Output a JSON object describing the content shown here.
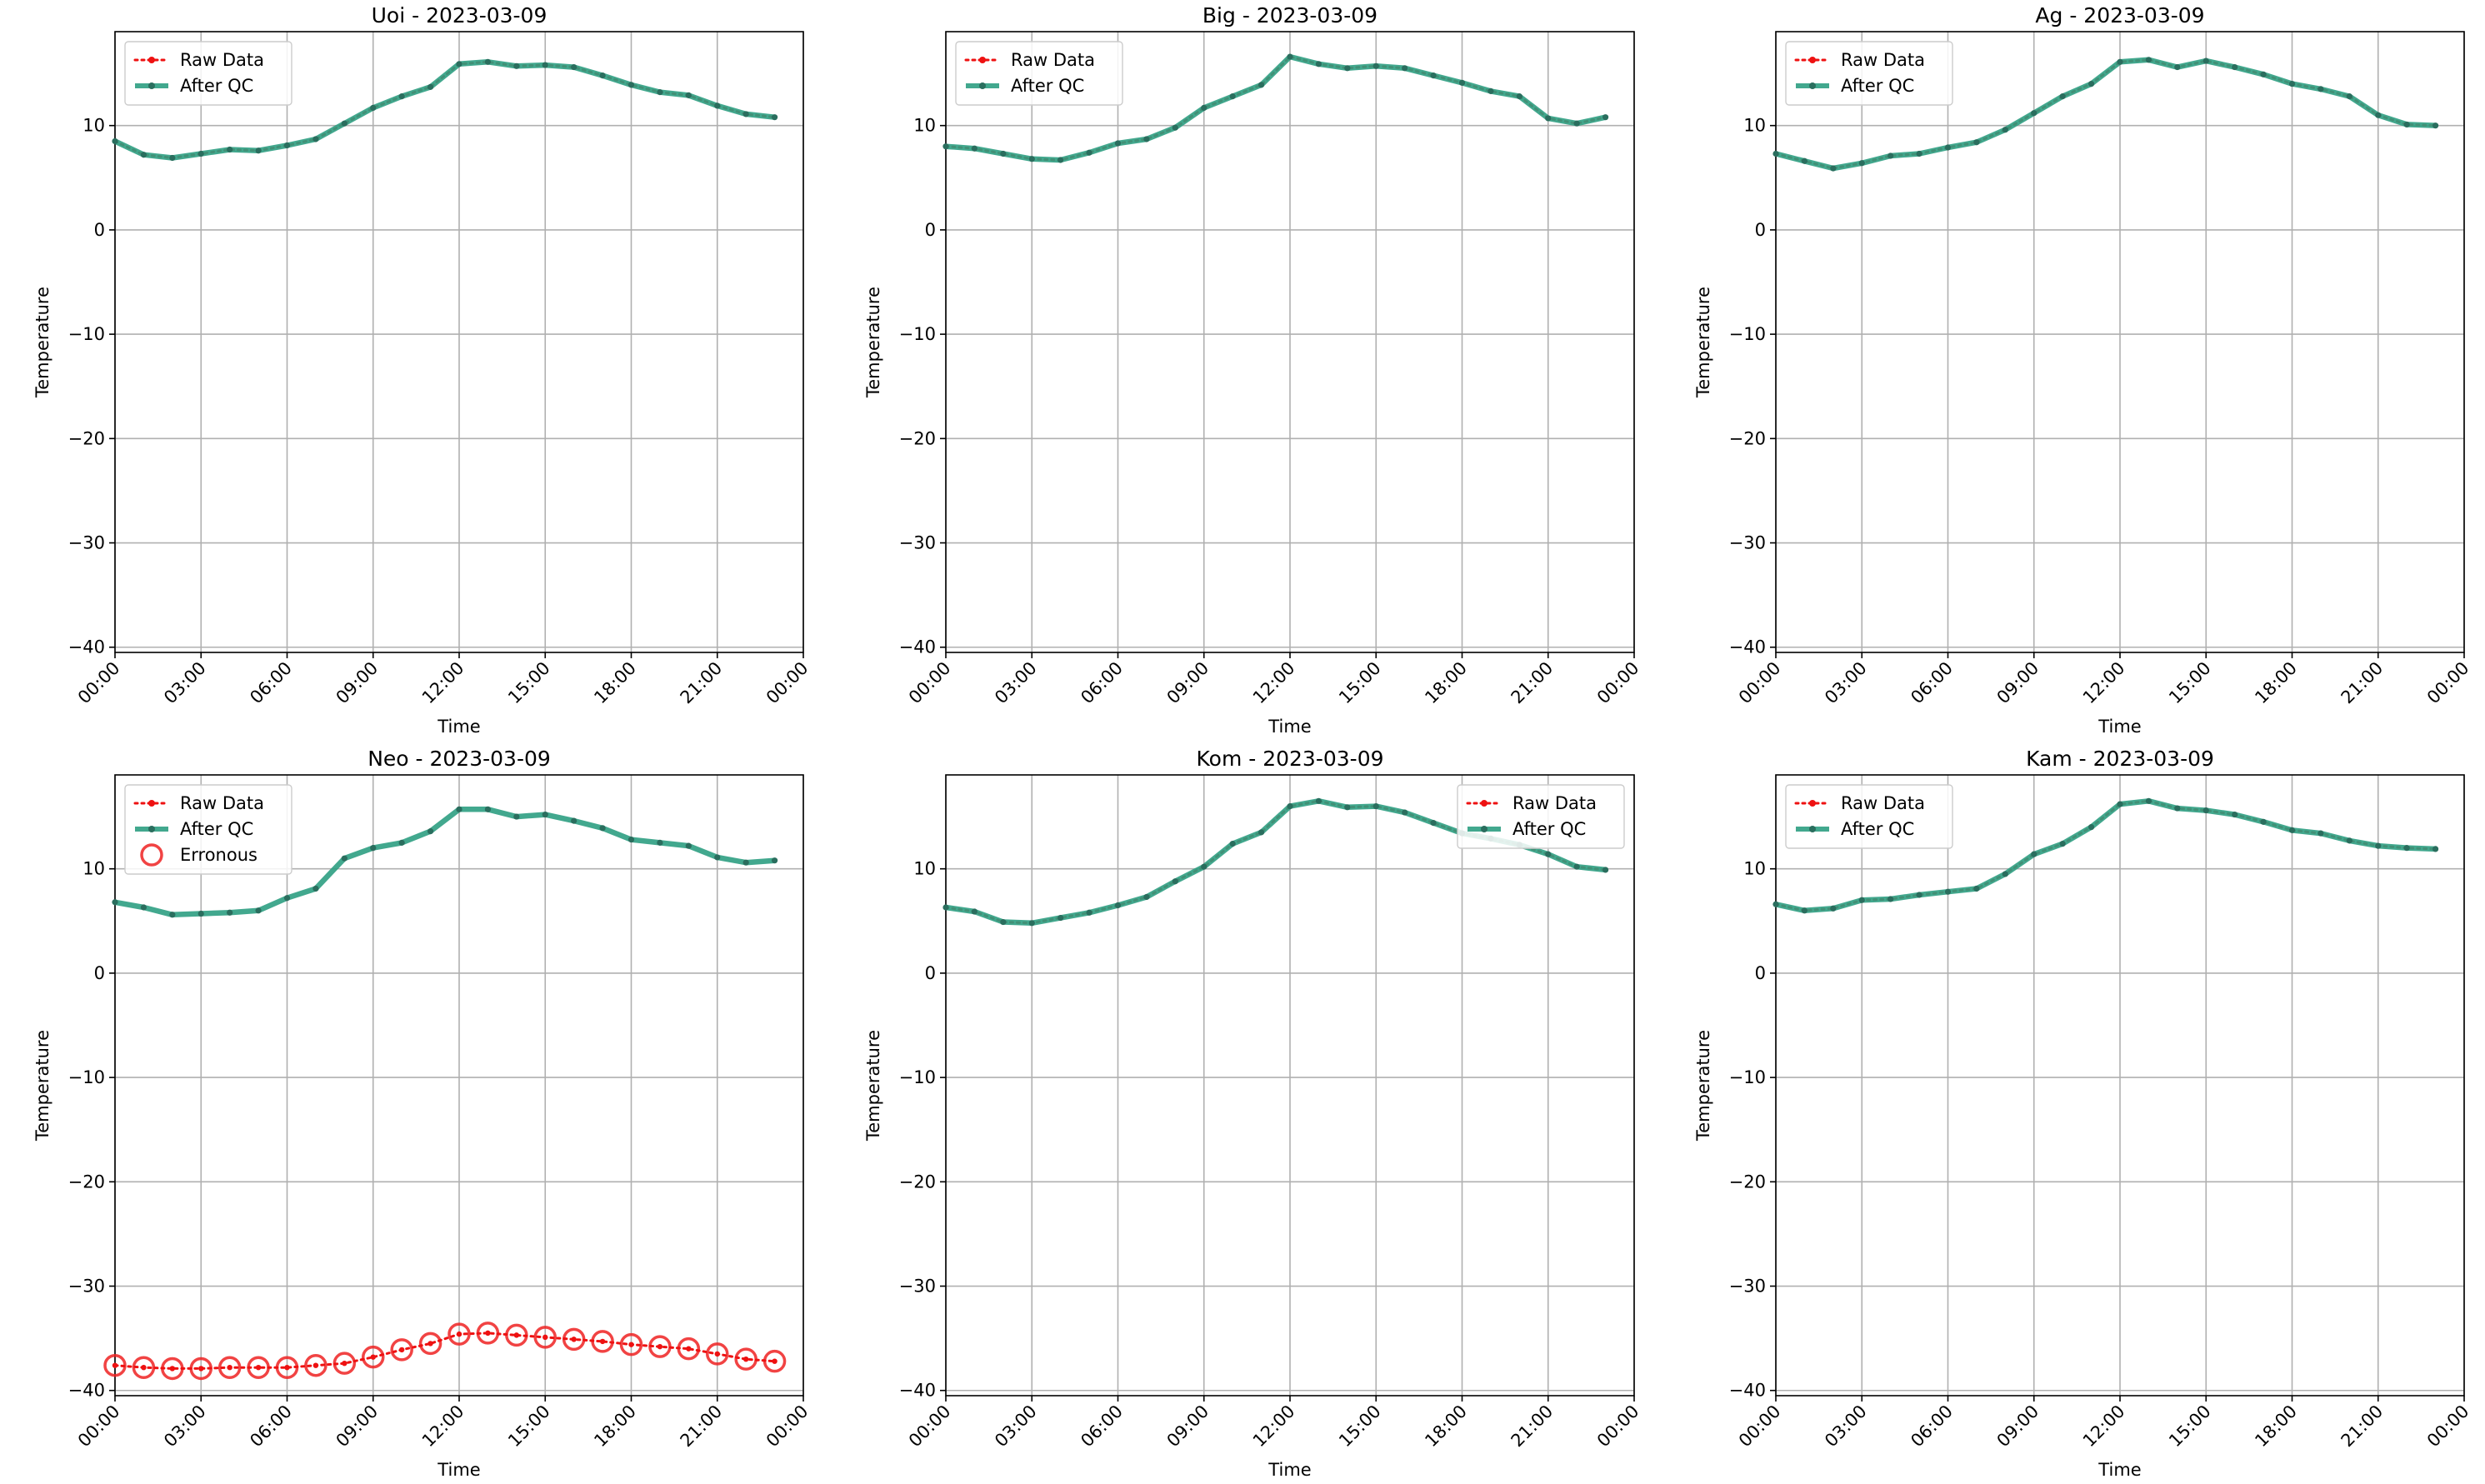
{
  "chart_data": [
    {
      "type": "line",
      "title": "Uoi - 2023-03-09",
      "xlabel": "Time",
      "ylabel": "Temperature",
      "xticks": [
        "00:00",
        "03:00",
        "06:00",
        "09:00",
        "12:00",
        "15:00",
        "18:00",
        "21:00",
        "00:00"
      ],
      "yticks": [
        "10",
        "0",
        "−10",
        "−20",
        "−30",
        "−40"
      ],
      "xlim": [
        0,
        24
      ],
      "ylim": [
        -40.5,
        19
      ],
      "grid": true,
      "legend_position": "upper-left",
      "legend": [
        "Raw Data",
        "After QC"
      ],
      "x_hours": [
        0,
        1,
        2,
        3,
        4,
        5,
        6,
        7,
        8,
        9,
        10,
        11,
        12,
        13,
        14,
        15,
        16,
        17,
        18,
        19,
        20,
        21,
        22,
        23
      ],
      "series": [
        {
          "name": "Raw Data",
          "values": [
            8.5,
            7.2,
            6.9,
            7.3,
            7.7,
            7.6,
            8.1,
            8.7,
            10.2,
            11.7,
            12.8,
            13.7,
            15.9,
            16.1,
            15.7,
            15.8,
            15.6,
            14.8,
            13.9,
            13.2,
            12.9,
            11.9,
            11.1,
            10.8
          ]
        },
        {
          "name": "After QC",
          "values": [
            8.5,
            7.2,
            6.9,
            7.3,
            7.7,
            7.6,
            8.1,
            8.7,
            10.2,
            11.7,
            12.8,
            13.7,
            15.9,
            16.1,
            15.7,
            15.8,
            15.6,
            14.8,
            13.9,
            13.2,
            12.9,
            11.9,
            11.1,
            10.8
          ]
        }
      ]
    },
    {
      "type": "line",
      "title": "Big - 2023-03-09",
      "xlabel": "Time",
      "ylabel": "Temperature",
      "xticks": [
        "00:00",
        "03:00",
        "06:00",
        "09:00",
        "12:00",
        "15:00",
        "18:00",
        "21:00",
        "00:00"
      ],
      "yticks": [
        "10",
        "0",
        "−10",
        "−20",
        "−30",
        "−40"
      ],
      "xlim": [
        0,
        24
      ],
      "ylim": [
        -40.5,
        19
      ],
      "grid": true,
      "legend_position": "upper-left",
      "legend": [
        "Raw Data",
        "After QC"
      ],
      "x_hours": [
        0,
        1,
        2,
        3,
        4,
        5,
        6,
        7,
        8,
        9,
        10,
        11,
        12,
        13,
        14,
        15,
        16,
        17,
        18,
        19,
        20,
        21,
        22,
        23
      ],
      "series": [
        {
          "name": "Raw Data",
          "values": [
            8.0,
            7.8,
            7.3,
            6.8,
            6.7,
            7.4,
            8.3,
            8.7,
            9.8,
            11.7,
            12.8,
            13.9,
            16.6,
            15.9,
            15.5,
            15.7,
            15.5,
            14.8,
            14.1,
            13.3,
            12.8,
            10.7,
            10.2,
            10.8
          ]
        },
        {
          "name": "After QC",
          "values": [
            8.0,
            7.8,
            7.3,
            6.8,
            6.7,
            7.4,
            8.3,
            8.7,
            9.8,
            11.7,
            12.8,
            13.9,
            16.6,
            15.9,
            15.5,
            15.7,
            15.5,
            14.8,
            14.1,
            13.3,
            12.8,
            10.7,
            10.2,
            10.8
          ]
        }
      ]
    },
    {
      "type": "line",
      "title": "Ag - 2023-03-09",
      "xlabel": "Time",
      "ylabel": "Temperature",
      "xticks": [
        "00:00",
        "03:00",
        "06:00",
        "09:00",
        "12:00",
        "15:00",
        "18:00",
        "21:00",
        "00:00"
      ],
      "yticks": [
        "10",
        "0",
        "−10",
        "−20",
        "−30",
        "−40"
      ],
      "xlim": [
        0,
        24
      ],
      "ylim": [
        -40.5,
        19
      ],
      "grid": true,
      "legend_position": "upper-left",
      "legend": [
        "Raw Data",
        "After QC"
      ],
      "x_hours": [
        0,
        1,
        2,
        3,
        4,
        5,
        6,
        7,
        8,
        9,
        10,
        11,
        12,
        13,
        14,
        15,
        16,
        17,
        18,
        19,
        20,
        21,
        22,
        23
      ],
      "series": [
        {
          "name": "Raw Data",
          "values": [
            7.3,
            6.6,
            5.9,
            6.4,
            7.1,
            7.3,
            7.9,
            8.4,
            9.6,
            11.2,
            12.8,
            14.0,
            16.1,
            16.3,
            15.6,
            16.2,
            15.6,
            14.9,
            14.0,
            13.5,
            12.8,
            11.0,
            10.1,
            10.0
          ]
        },
        {
          "name": "After QC",
          "values": [
            7.3,
            6.6,
            5.9,
            6.4,
            7.1,
            7.3,
            7.9,
            8.4,
            9.6,
            11.2,
            12.8,
            14.0,
            16.1,
            16.3,
            15.6,
            16.2,
            15.6,
            14.9,
            14.0,
            13.5,
            12.8,
            11.0,
            10.1,
            10.0
          ]
        }
      ]
    },
    {
      "type": "line",
      "title": "Neo - 2023-03-09",
      "xlabel": "Time",
      "ylabel": "Temperature",
      "xticks": [
        "00:00",
        "03:00",
        "06:00",
        "09:00",
        "12:00",
        "15:00",
        "18:00",
        "21:00",
        "00:00"
      ],
      "yticks": [
        "10",
        "0",
        "−10",
        "−20",
        "−30",
        "−40"
      ],
      "xlim": [
        0,
        24
      ],
      "ylim": [
        -40.5,
        19
      ],
      "grid": true,
      "legend_position": "upper-left",
      "legend": [
        "Raw Data",
        "After QC",
        "Erronous"
      ],
      "x_hours": [
        0,
        1,
        2,
        3,
        4,
        5,
        6,
        7,
        8,
        9,
        10,
        11,
        12,
        13,
        14,
        15,
        16,
        17,
        18,
        19,
        20,
        21,
        22,
        23
      ],
      "series": [
        {
          "name": "Raw Data",
          "values": [
            -37.6,
            -37.8,
            -37.9,
            -37.9,
            -37.8,
            -37.8,
            -37.8,
            -37.6,
            -37.4,
            -36.8,
            -36.1,
            -35.5,
            -34.6,
            -34.5,
            -34.7,
            -34.9,
            -35.1,
            -35.3,
            -35.6,
            -35.8,
            -36.0,
            -36.5,
            -37.0,
            -37.2
          ]
        },
        {
          "name": "After QC",
          "values": [
            6.8,
            6.3,
            5.6,
            5.7,
            5.8,
            6.0,
            7.2,
            8.1,
            11.0,
            12.0,
            12.5,
            13.6,
            15.7,
            15.7,
            15.0,
            15.2,
            14.6,
            13.9,
            12.8,
            12.5,
            12.2,
            11.1,
            10.6,
            10.8
          ]
        },
        {
          "name": "Erronous",
          "values": [
            -37.6,
            -37.8,
            -37.9,
            -37.9,
            -37.8,
            -37.8,
            -37.8,
            -37.6,
            -37.4,
            -36.8,
            -36.1,
            -35.5,
            -34.6,
            -34.5,
            -34.7,
            -34.9,
            -35.1,
            -35.3,
            -35.6,
            -35.8,
            -36.0,
            -36.5,
            -37.0,
            -37.2
          ]
        }
      ]
    },
    {
      "type": "line",
      "title": "Kom - 2023-03-09",
      "xlabel": "Time",
      "ylabel": "Temperature",
      "xticks": [
        "00:00",
        "03:00",
        "06:00",
        "09:00",
        "12:00",
        "15:00",
        "18:00",
        "21:00",
        "00:00"
      ],
      "yticks": [
        "10",
        "0",
        "−10",
        "−20",
        "−30",
        "−40"
      ],
      "xlim": [
        0,
        24
      ],
      "ylim": [
        -40.5,
        19
      ],
      "grid": true,
      "legend_position": "upper-right",
      "legend": [
        "Raw Data",
        "After QC"
      ],
      "x_hours": [
        0,
        1,
        2,
        3,
        4,
        5,
        6,
        7,
        8,
        9,
        10,
        11,
        12,
        13,
        14,
        15,
        16,
        17,
        18,
        19,
        20,
        21,
        22,
        23
      ],
      "series": [
        {
          "name": "Raw Data",
          "values": [
            6.3,
            5.9,
            4.9,
            4.8,
            5.3,
            5.8,
            6.5,
            7.3,
            8.8,
            10.2,
            12.4,
            13.5,
            16.0,
            16.5,
            15.9,
            16.0,
            15.4,
            14.4,
            13.4,
            12.9,
            12.3,
            11.4,
            10.2,
            9.9
          ]
        },
        {
          "name": "After QC",
          "values": [
            6.3,
            5.9,
            4.9,
            4.8,
            5.3,
            5.8,
            6.5,
            7.3,
            8.8,
            10.2,
            12.4,
            13.5,
            16.0,
            16.5,
            15.9,
            16.0,
            15.4,
            14.4,
            13.4,
            12.9,
            12.3,
            11.4,
            10.2,
            9.9
          ]
        }
      ]
    },
    {
      "type": "line",
      "title": "Kam - 2023-03-09",
      "xlabel": "Time",
      "ylabel": "Temperature",
      "xticks": [
        "00:00",
        "03:00",
        "06:00",
        "09:00",
        "12:00",
        "15:00",
        "18:00",
        "21:00",
        "00:00"
      ],
      "yticks": [
        "10",
        "0",
        "−10",
        "−20",
        "−30",
        "−40"
      ],
      "xlim": [
        0,
        24
      ],
      "ylim": [
        -40.5,
        19
      ],
      "grid": true,
      "legend_position": "upper-left",
      "legend": [
        "Raw Data",
        "After QC"
      ],
      "x_hours": [
        0,
        1,
        2,
        3,
        4,
        5,
        6,
        7,
        8,
        9,
        10,
        11,
        12,
        13,
        14,
        15,
        16,
        17,
        18,
        19,
        20,
        21,
        22,
        23
      ],
      "series": [
        {
          "name": "Raw Data",
          "values": [
            6.6,
            6.0,
            6.2,
            7.0,
            7.1,
            7.5,
            7.8,
            8.1,
            9.5,
            11.4,
            12.4,
            14.0,
            16.2,
            16.5,
            15.8,
            15.6,
            15.2,
            14.5,
            13.7,
            13.4,
            12.7,
            12.2,
            12.0,
            11.9
          ]
        },
        {
          "name": "After QC",
          "values": [
            6.6,
            6.0,
            6.2,
            7.0,
            7.1,
            7.5,
            7.8,
            8.1,
            9.5,
            11.4,
            12.4,
            14.0,
            16.2,
            16.5,
            15.8,
            15.6,
            15.2,
            14.5,
            13.7,
            13.4,
            12.7,
            12.2,
            12.0,
            11.9
          ]
        }
      ]
    }
  ],
  "colors": {
    "raw": "#ee1111",
    "qc": "#2e9e82",
    "qc_marker": "#2a6e5e",
    "erroneous": "#ee2222",
    "grid": "#b0b0b0",
    "axis": "#000000"
  }
}
